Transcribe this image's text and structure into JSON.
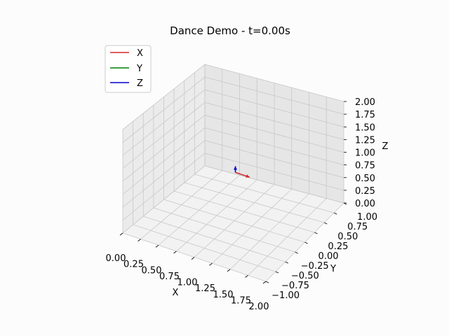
{
  "chart_data": {
    "type": "line",
    "projection": "3d",
    "title": "Dance Demo - t=0.00s",
    "xlabel": "X",
    "ylabel": "Y",
    "zlabel": "Z",
    "xlim": [
      0,
      2
    ],
    "ylim": [
      -1,
      1
    ],
    "zlim": [
      0,
      2
    ],
    "x_ticks": [
      "0.00",
      "0.25",
      "0.50",
      "0.75",
      "1.00",
      "1.25",
      "1.50",
      "1.75",
      "2.00"
    ],
    "y_ticks": [
      "−1.00",
      "−0.75",
      "−0.50",
      "−0.25",
      "0.00",
      "0.25",
      "0.50",
      "0.75",
      "1.00"
    ],
    "z_ticks": [
      "0.00",
      "0.25",
      "0.50",
      "0.75",
      "1.00",
      "1.25",
      "1.50",
      "1.75",
      "2.00"
    ],
    "grid": true,
    "legend_position": "top-left",
    "series": [
      {
        "name": "X",
        "color": "#d62728",
        "points": [
          [
            1.0,
            0.0,
            1.0
          ],
          [
            1.2,
            0.0,
            1.0
          ]
        ]
      },
      {
        "name": "Y",
        "color": "#008000",
        "points": [
          [
            1.0,
            0.0,
            1.0
          ],
          [
            1.0,
            0.0,
            1.0
          ]
        ]
      },
      {
        "name": "Z",
        "color": "#0000cc",
        "points": [
          [
            1.0,
            0.0,
            1.0
          ],
          [
            1.0,
            0.0,
            1.12
          ]
        ]
      }
    ]
  }
}
